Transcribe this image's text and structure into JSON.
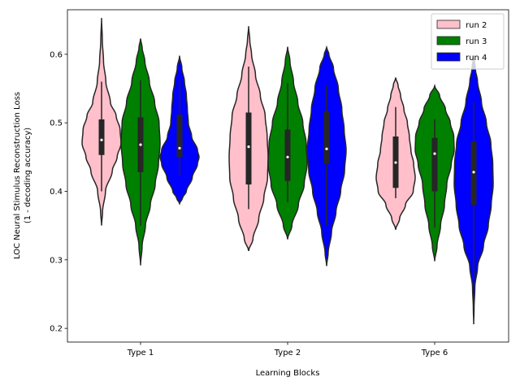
{
  "chart_data": {
    "type": "violin",
    "xlabel": "Learning Blocks",
    "ylabel_lines": [
      "LOC Neural Stimulus Reconstruction Loss",
      "(1 - decoding accuracy)"
    ],
    "categories": [
      "Type 1",
      "Type 2",
      "Type 6"
    ],
    "yticks": [
      "0.2",
      "0.3",
      "0.4",
      "0.5",
      "0.6"
    ],
    "ylim": [
      0.18,
      0.665
    ],
    "legend_position": "top-right",
    "series": [
      {
        "name": "run 2",
        "color": "#ffc0cb",
        "violins": [
          {
            "kde_min": 0.35,
            "kde_max": 0.653,
            "q1": 0.453,
            "median": 0.475,
            "q3": 0.505,
            "whisker_low": 0.4,
            "whisker_high": 0.56,
            "profile": [
              [
                0.35,
                0.0
              ],
              [
                0.37,
                0.05
              ],
              [
                0.4,
                0.2
              ],
              [
                0.43,
                0.55
              ],
              [
                0.45,
                0.8
              ],
              [
                0.47,
                1.0
              ],
              [
                0.49,
                0.95
              ],
              [
                0.51,
                0.75
              ],
              [
                0.53,
                0.45
              ],
              [
                0.56,
                0.22
              ],
              [
                0.59,
                0.1
              ],
              [
                0.62,
                0.04
              ],
              [
                0.653,
                0.0
              ]
            ]
          },
          {
            "kde_min": 0.313,
            "kde_max": 0.641,
            "q1": 0.41,
            "median": 0.465,
            "q3": 0.515,
            "whisker_low": 0.374,
            "whisker_high": 0.582,
            "profile": [
              [
                0.313,
                0.0
              ],
              [
                0.33,
                0.22
              ],
              [
                0.36,
                0.52
              ],
              [
                0.39,
                0.78
              ],
              [
                0.42,
                0.97
              ],
              [
                0.45,
                1.0
              ],
              [
                0.48,
                0.95
              ],
              [
                0.51,
                0.85
              ],
              [
                0.54,
                0.6
              ],
              [
                0.57,
                0.35
              ],
              [
                0.6,
                0.15
              ],
              [
                0.62,
                0.06
              ],
              [
                0.641,
                0.0
              ]
            ]
          },
          {
            "kde_min": 0.344,
            "kde_max": 0.566,
            "q1": 0.405,
            "median": 0.442,
            "q3": 0.48,
            "whisker_low": 0.39,
            "whisker_high": 0.523,
            "profile": [
              [
                0.344,
                0.0
              ],
              [
                0.36,
                0.2
              ],
              [
                0.38,
                0.5
              ],
              [
                0.4,
                0.9
              ],
              [
                0.42,
                1.0
              ],
              [
                0.44,
                0.92
              ],
              [
                0.46,
                0.78
              ],
              [
                0.48,
                0.7
              ],
              [
                0.5,
                0.6
              ],
              [
                0.52,
                0.42
              ],
              [
                0.54,
                0.25
              ],
              [
                0.555,
                0.12
              ],
              [
                0.566,
                0.0
              ]
            ]
          }
        ]
      },
      {
        "name": "run 3",
        "color": "#008000",
        "violins": [
          {
            "kde_min": 0.292,
            "kde_max": 0.623,
            "q1": 0.428,
            "median": 0.468,
            "q3": 0.508,
            "whisker_low": 0.35,
            "whisker_high": 0.562,
            "profile": [
              [
                0.292,
                0.0
              ],
              [
                0.32,
                0.08
              ],
              [
                0.35,
                0.25
              ],
              [
                0.38,
                0.5
              ],
              [
                0.41,
                0.75
              ],
              [
                0.44,
                0.92
              ],
              [
                0.47,
                1.0
              ],
              [
                0.5,
                0.95
              ],
              [
                0.53,
                0.72
              ],
              [
                0.56,
                0.45
              ],
              [
                0.59,
                0.22
              ],
              [
                0.61,
                0.08
              ],
              [
                0.623,
                0.0
              ]
            ]
          },
          {
            "kde_min": 0.33,
            "kde_max": 0.611,
            "q1": 0.415,
            "median": 0.45,
            "q3": 0.49,
            "whisker_low": 0.384,
            "whisker_high": 0.558,
            "profile": [
              [
                0.33,
                0.0
              ],
              [
                0.35,
                0.22
              ],
              [
                0.38,
                0.55
              ],
              [
                0.41,
                0.85
              ],
              [
                0.44,
                1.0
              ],
              [
                0.47,
                0.95
              ],
              [
                0.5,
                0.78
              ],
              [
                0.53,
                0.52
              ],
              [
                0.56,
                0.3
              ],
              [
                0.59,
                0.12
              ],
              [
                0.611,
                0.0
              ]
            ]
          },
          {
            "kde_min": 0.298,
            "kde_max": 0.554,
            "q1": 0.4,
            "median": 0.455,
            "q3": 0.478,
            "whisker_low": 0.347,
            "whisker_high": 0.505,
            "profile": [
              [
                0.298,
                0.0
              ],
              [
                0.32,
                0.12
              ],
              [
                0.35,
                0.3
              ],
              [
                0.38,
                0.5
              ],
              [
                0.41,
                0.62
              ],
              [
                0.44,
                0.85
              ],
              [
                0.46,
                1.0
              ],
              [
                0.48,
                0.98
              ],
              [
                0.5,
                0.8
              ],
              [
                0.52,
                0.55
              ],
              [
                0.54,
                0.25
              ],
              [
                0.554,
                0.0
              ]
            ]
          }
        ]
      },
      {
        "name": "run 4",
        "color": "#0000ff",
        "violins": [
          {
            "kde_min": 0.382,
            "kde_max": 0.598,
            "q1": 0.45,
            "median": 0.463,
            "q3": 0.512,
            "whisker_low": 0.423,
            "whisker_high": 0.562,
            "profile": [
              [
                0.382,
                0.0
              ],
              [
                0.39,
                0.15
              ],
              [
                0.4,
                0.35
              ],
              [
                0.42,
                0.65
              ],
              [
                0.44,
                0.92
              ],
              [
                0.45,
                1.0
              ],
              [
                0.46,
                0.92
              ],
              [
                0.48,
                0.62
              ],
              [
                0.5,
                0.45
              ],
              [
                0.52,
                0.4
              ],
              [
                0.54,
                0.35
              ],
              [
                0.56,
                0.25
              ],
              [
                0.58,
                0.12
              ],
              [
                0.598,
                0.0
              ]
            ]
          },
          {
            "kde_min": 0.291,
            "kde_max": 0.61,
            "q1": 0.44,
            "median": 0.462,
            "q3": 0.517,
            "whisker_low": 0.35,
            "whisker_high": 0.555,
            "profile": [
              [
                0.291,
                0.0
              ],
              [
                0.31,
                0.08
              ],
              [
                0.34,
                0.25
              ],
              [
                0.37,
                0.48
              ],
              [
                0.4,
                0.72
              ],
              [
                0.43,
                0.92
              ],
              [
                0.46,
                1.0
              ],
              [
                0.49,
                0.9
              ],
              [
                0.52,
                0.78
              ],
              [
                0.55,
                0.6
              ],
              [
                0.58,
                0.35
              ],
              [
                0.6,
                0.12
              ],
              [
                0.61,
                0.0
              ]
            ]
          },
          {
            "kde_min": 0.206,
            "kde_max": 0.598,
            "q1": 0.38,
            "median": 0.428,
            "q3": 0.473,
            "whisker_low": 0.27,
            "whisker_high": 0.53,
            "profile": [
              [
                0.206,
                0.0
              ],
              [
                0.23,
                0.02
              ],
              [
                0.26,
                0.06
              ],
              [
                0.29,
                0.2
              ],
              [
                0.32,
                0.5
              ],
              [
                0.35,
                0.75
              ],
              [
                0.38,
                0.9
              ],
              [
                0.41,
                1.0
              ],
              [
                0.44,
                0.98
              ],
              [
                0.47,
                0.88
              ],
              [
                0.5,
                0.65
              ],
              [
                0.53,
                0.4
              ],
              [
                0.56,
                0.2
              ],
              [
                0.58,
                0.08
              ],
              [
                0.598,
                0.0
              ]
            ]
          }
        ]
      }
    ]
  }
}
